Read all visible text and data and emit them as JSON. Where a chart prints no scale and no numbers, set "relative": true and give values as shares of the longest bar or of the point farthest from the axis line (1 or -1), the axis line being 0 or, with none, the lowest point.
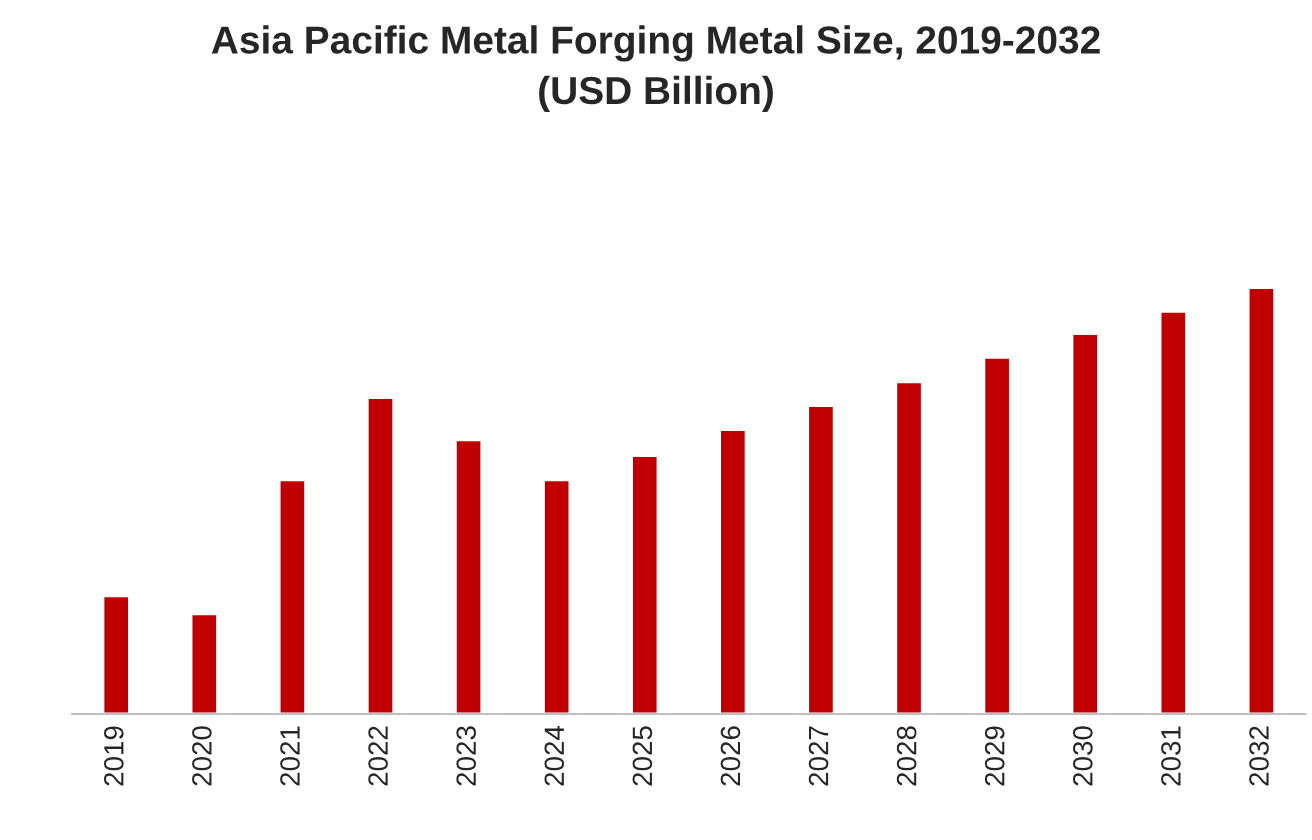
{
  "chart_data": {
    "type": "bar",
    "title": "Asia Pacific Metal Forging Metal Size, 2019-2032\n(USD Billion)",
    "categories": [
      "2019",
      "2020",
      "2021",
      "2022",
      "2023",
      "2024",
      "2025",
      "2026",
      "2027",
      "2028",
      "2029",
      "2030",
      "2031",
      "2032"
    ],
    "values": [
      0.277,
      0.235,
      0.549,
      0.742,
      0.643,
      0.549,
      0.606,
      0.667,
      0.723,
      0.779,
      0.836,
      0.892,
      0.944,
      1
    ],
    "color": "#c00000",
    "relative": true,
    "grid": false
  }
}
